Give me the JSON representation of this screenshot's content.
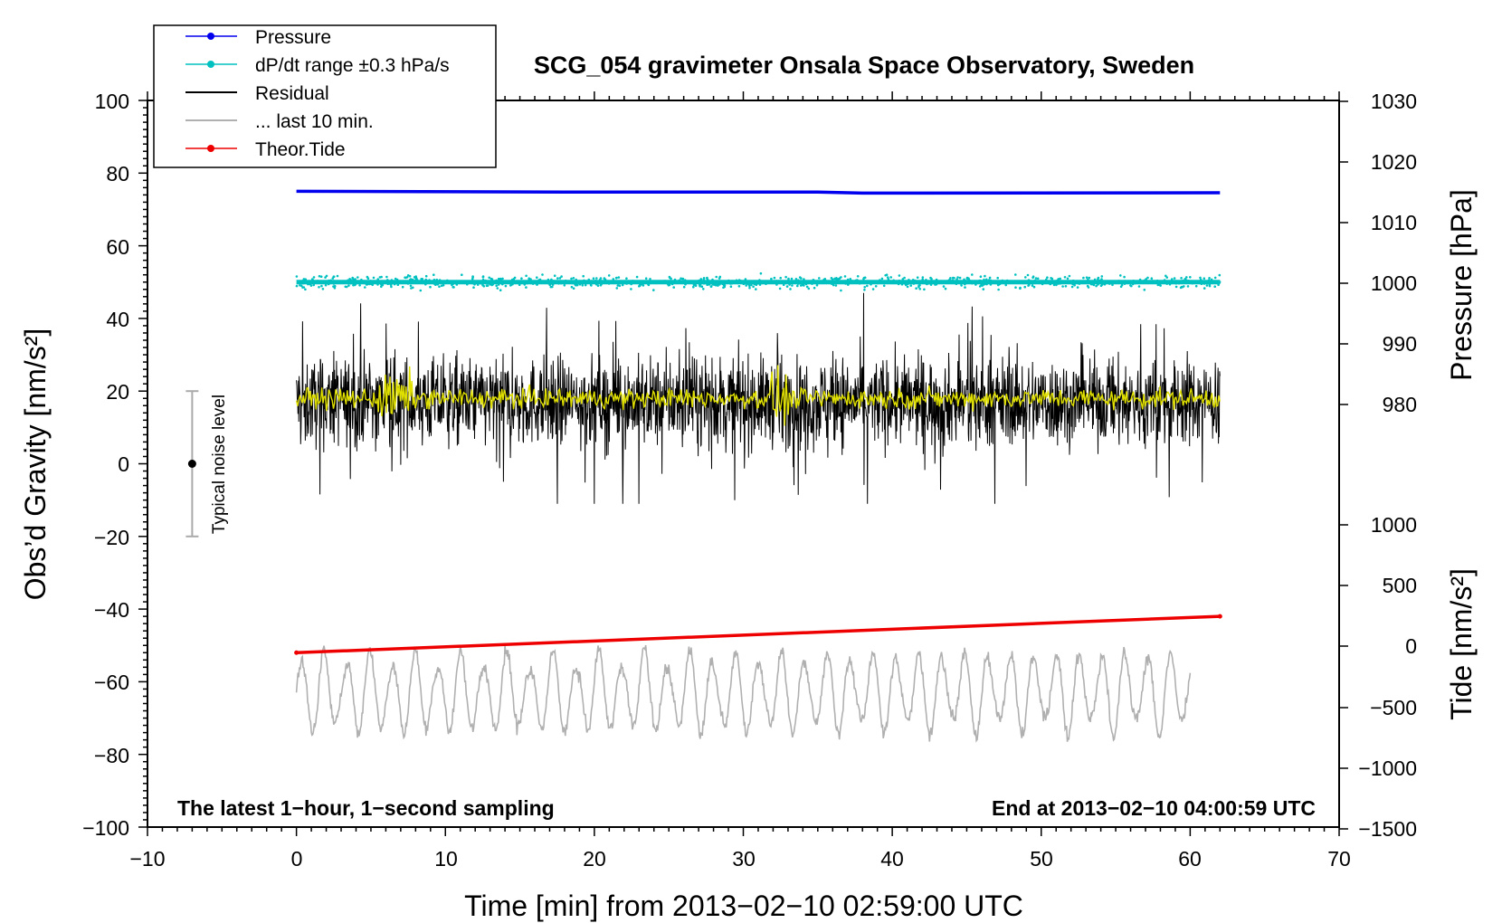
{
  "chart_data": {
    "type": "line",
    "title": "SCG_054 gravimeter Onsala Space Observatory, Sweden",
    "xlabel": "Time [min] from 2013−02−10 02:59:00 UTC",
    "ylabel_left": "Obs’d Gravity [nm/s²]",
    "ylabel_pressure": "Pressure [hPa]",
    "ylabel_tide": "Tide [nm/s²]",
    "xlim": [
      -10,
      70
    ],
    "ylim_left": [
      -100,
      100
    ],
    "x_ticks": [
      "−10",
      "0",
      "10",
      "20",
      "30",
      "40",
      "50",
      "60",
      "70"
    ],
    "y_ticks_left": [
      "100",
      "80",
      "60",
      "40",
      "20",
      "0",
      "−20",
      "−40",
      "−60",
      "−80",
      "−100"
    ],
    "pressure_ticks": [
      "1030",
      "1020",
      "1010",
      "1000",
      "990",
      "980"
    ],
    "tide_ticks": [
      "1000",
      "500",
      "0",
      "−500",
      "−1000",
      "−1500"
    ],
    "annotation_left": "The latest 1−hour, 1−second sampling",
    "annotation_right": "End at 2013−02−10 04:00:59 UTC",
    "noise_label": "Typical noise level",
    "noise_bar": {
      "x": -7,
      "center": 0,
      "low": -20,
      "high": 20
    },
    "legend": [
      {
        "label": "Pressure",
        "color": "#0000ee",
        "style": "line-dot"
      },
      {
        "label": "dP/dt range ±0.3 hPa/s",
        "color": "#00c0c0",
        "style": "line-dot"
      },
      {
        "label": "Residual",
        "color": "#000000",
        "style": "line"
      },
      {
        "label": "... last 10 min.",
        "color": "#b0b0b0",
        "style": "line"
      },
      {
        "label": "Theor.Tide",
        "color": "#ee0000",
        "style": "line-dot"
      }
    ],
    "series": [
      {
        "name": "Pressure",
        "color": "#0000ee",
        "x": [
          0,
          18,
          35,
          38,
          62
        ],
        "y": [
          75.0,
          74.8,
          74.8,
          74.5,
          74.6
        ]
      },
      {
        "name": "dP/dt range ±0.3 hPa/s",
        "color": "#00c0c0",
        "x_range": [
          0,
          62
        ],
        "center": 50,
        "spread": 2
      },
      {
        "name": "Residual",
        "color": "#000000",
        "x_range": [
          0,
          62
        ],
        "center": 17,
        "spread": 12,
        "min": -11,
        "max": 47
      },
      {
        "name": "Residual (smoothed)",
        "color": "#e0e000",
        "x_range": [
          0,
          62
        ],
        "center": 18,
        "spread": 3
      },
      {
        "name": "... last 10 min.",
        "color": "#b0b0b0",
        "x_range": [
          0,
          60
        ],
        "center": -63,
        "min": -81,
        "max": -39
      },
      {
        "name": "Theor.Tide",
        "color": "#ee0000",
        "x": [
          0,
          62
        ],
        "y": [
          -52,
          -42
        ]
      }
    ]
  }
}
